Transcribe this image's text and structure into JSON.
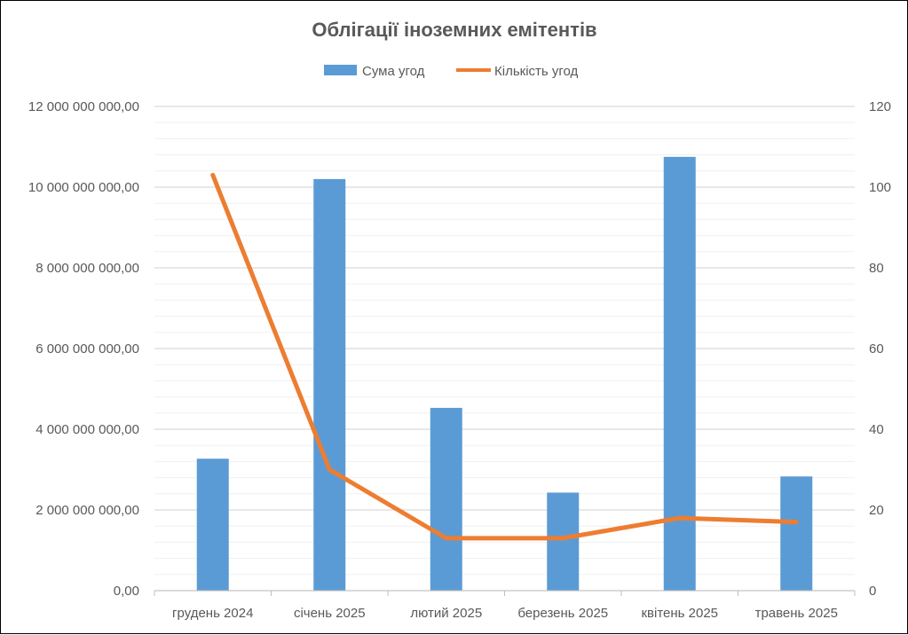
{
  "chart_data": {
    "type": "bar",
    "title": "Облігації іноземних емітентів",
    "categories": [
      "грудень 2024",
      "січень 2025",
      "лютий 2025",
      "березень 2025",
      "квітень 2025",
      "травень 2025"
    ],
    "series": [
      {
        "name": "Сума угод",
        "type": "bar",
        "axis": "left",
        "color": "#5B9BD5",
        "values": [
          3270000000,
          10200000000,
          4530000000,
          2430000000,
          10750000000,
          2830000000
        ]
      },
      {
        "name": "Кількість угод",
        "type": "line",
        "axis": "right",
        "color": "#ED7D31",
        "values": [
          103,
          30,
          13,
          13,
          18,
          17
        ]
      }
    ],
    "y_left": {
      "range": [
        0,
        12000000000
      ],
      "ticks": [
        "0,00",
        "2 000 000 000,00",
        "4 000 000 000,00",
        "6 000 000 000,00",
        "8 000 000 000,00",
        "10 000 000 000,00",
        "12 000 000 000,00"
      ]
    },
    "y_right": {
      "range": [
        0,
        120
      ],
      "ticks": [
        "0",
        "20",
        "40",
        "60",
        "80",
        "100",
        "120"
      ]
    },
    "grid": true,
    "legend_position": "top"
  }
}
